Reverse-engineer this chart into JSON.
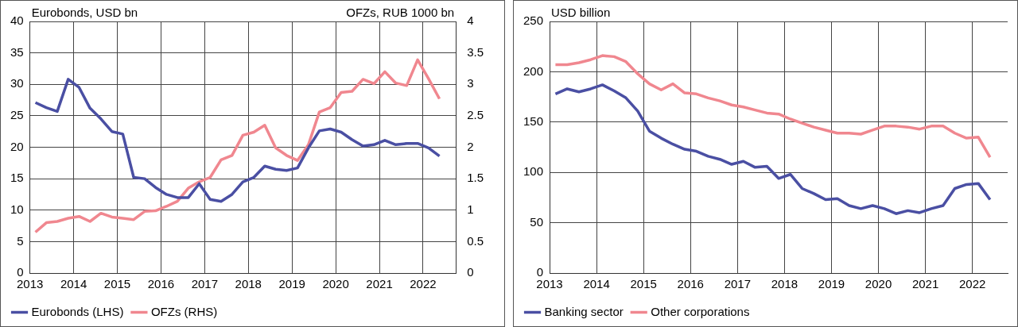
{
  "chart_data": [
    {
      "type": "line",
      "ylabel": "Eurobonds, USD bn",
      "y2label": "OFZs, RUB 1000 bn",
      "x": [
        2013.125,
        2013.375,
        2013.625,
        2013.875,
        2014.125,
        2014.375,
        2014.625,
        2014.875,
        2015.125,
        2015.375,
        2015.625,
        2015.875,
        2016.125,
        2016.375,
        2016.625,
        2016.875,
        2017.125,
        2017.375,
        2017.625,
        2017.875,
        2018.125,
        2018.375,
        2018.625,
        2018.875,
        2019.125,
        2019.375,
        2019.625,
        2019.875,
        2020.125,
        2020.375,
        2020.625,
        2020.875,
        2021.125,
        2021.375,
        2021.625,
        2021.875,
        2022.125,
        2022.375
      ],
      "series": [
        {
          "name": "Eurobonds (LHS)",
          "color": "#4a4fa3",
          "values": [
            27.1,
            26.3,
            25.7,
            30.8,
            29.5,
            26.2,
            24.5,
            22.5,
            22.1,
            15.2,
            15.0,
            13.6,
            12.5,
            12.0,
            12.0,
            14.2,
            11.7,
            11.4,
            12.5,
            14.5,
            15.2,
            17.0,
            16.5,
            16.3,
            16.7,
            19.9,
            22.6,
            22.9,
            22.4,
            21.2,
            20.2,
            20.4,
            21.1,
            20.4,
            20.6,
            20.6,
            19.9,
            18.6
          ]
        },
        {
          "name": "OFZs (RHS)",
          "color": "#f0878f",
          "axis": "y2",
          "values": [
            0.65,
            0.8,
            0.82,
            0.87,
            0.9,
            0.82,
            0.95,
            0.89,
            0.87,
            0.85,
            0.98,
            0.99,
            1.06,
            1.14,
            1.35,
            1.45,
            1.52,
            1.8,
            1.87,
            2.19,
            2.24,
            2.35,
            1.99,
            1.87,
            1.79,
            2.04,
            2.56,
            2.63,
            2.87,
            2.89,
            3.08,
            3.01,
            3.2,
            3.02,
            2.98,
            3.39,
            3.09,
            2.77
          ]
        }
      ],
      "xlim": [
        2013,
        2022.75
      ],
      "xticks": [
        2013,
        2014,
        2015,
        2016,
        2017,
        2018,
        2019,
        2020,
        2021,
        2022
      ],
      "ylim": [
        0,
        40
      ],
      "yticks": [
        0,
        5,
        10,
        15,
        20,
        25,
        30,
        35,
        40
      ],
      "y2lim": [
        0,
        4
      ],
      "y2ticks": [
        0,
        0.5,
        1,
        1.5,
        2,
        2.5,
        3,
        3.5,
        4
      ],
      "grid": true,
      "legend": "bottom",
      "marker": "none"
    },
    {
      "type": "line",
      "ylabel": "USD billion",
      "x": [
        2013.125,
        2013.375,
        2013.625,
        2013.875,
        2014.125,
        2014.375,
        2014.625,
        2014.875,
        2015.125,
        2015.375,
        2015.625,
        2015.875,
        2016.125,
        2016.375,
        2016.625,
        2016.875,
        2017.125,
        2017.375,
        2017.625,
        2017.875,
        2018.125,
        2018.375,
        2018.625,
        2018.875,
        2019.125,
        2019.375,
        2019.625,
        2019.875,
        2020.125,
        2020.375,
        2020.625,
        2020.875,
        2021.125,
        2021.375,
        2021.625,
        2021.875,
        2022.125,
        2022.375
      ],
      "series": [
        {
          "name": "Banking sector",
          "color": "#4a4fa3",
          "values": [
            178,
            183,
            180,
            183,
            187,
            181,
            174,
            161,
            141,
            134,
            128,
            123,
            121,
            116,
            113,
            108,
            111,
            105,
            106,
            94,
            98,
            84,
            79,
            73,
            74,
            67,
            64,
            67,
            64,
            59,
            62,
            60,
            64,
            67,
            84,
            88,
            89,
            73
          ]
        },
        {
          "name": "Other corporations",
          "color": "#f0878f",
          "values": [
            207,
            207,
            209,
            212,
            216,
            215,
            210,
            198,
            188,
            182,
            188,
            179,
            178,
            174,
            171,
            167,
            165,
            162,
            159,
            158,
            153,
            149,
            145,
            142,
            139,
            139,
            138,
            142,
            146,
            146,
            145,
            143,
            146,
            146,
            139,
            134,
            135,
            115
          ]
        }
      ],
      "xlim": [
        2013,
        2022.75
      ],
      "xticks": [
        2013,
        2014,
        2015,
        2016,
        2017,
        2018,
        2019,
        2020,
        2021,
        2022
      ],
      "ylim": [
        0,
        250
      ],
      "yticks": [
        0,
        50,
        100,
        150,
        200,
        250
      ],
      "grid": true,
      "legend": "bottom",
      "marker": "none"
    }
  ]
}
